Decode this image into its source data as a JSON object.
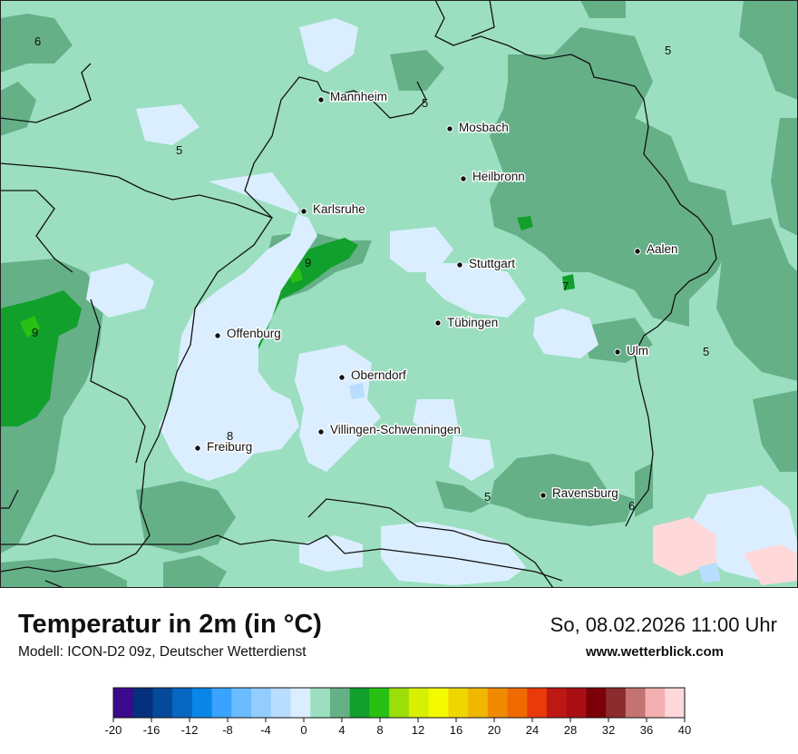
{
  "header": {
    "title": "Temperatur in 2m (in °C)",
    "model": "Modell: ICON-D2 09z, Deutscher Wetterdienst",
    "datetime": "So, 08.02.2026 11:00 Uhr",
    "site": "www.wetterblick.com"
  },
  "cities": [
    {
      "name": "Mannheim"
    },
    {
      "name": "Mosbach"
    },
    {
      "name": "Heilbronn"
    },
    {
      "name": "Karlsruhe"
    },
    {
      "name": "Aalen"
    },
    {
      "name": "Stuttgart"
    },
    {
      "name": "Tübingen"
    },
    {
      "name": "Offenburg"
    },
    {
      "name": "Ulm"
    },
    {
      "name": "Oberndorf"
    },
    {
      "name": "Villingen-Schwenningen"
    },
    {
      "name": "Freiburg"
    },
    {
      "name": "Ravensburg"
    }
  ],
  "isolines": [
    "6",
    "5",
    "5",
    "5",
    "9",
    "9",
    "7",
    "5",
    "8",
    "5",
    "6"
  ],
  "legend": {
    "ticks": [
      "-20",
      "-16",
      "-12",
      "-8",
      "-4",
      "0",
      "4",
      "8",
      "12",
      "16",
      "20",
      "24",
      "28",
      "32",
      "36",
      "40"
    ],
    "colors": [
      "#3b0a8c",
      "#05307e",
      "#064a9a",
      "#0767c2",
      "#0a86e8",
      "#3aa2ff",
      "#6bbcff",
      "#93cdff",
      "#b9ddff",
      "#dbeeff",
      "#9bdfc0",
      "#66b088",
      "#12a02c",
      "#28c013",
      "#9cde07",
      "#d7ef00",
      "#f4fa00",
      "#f0d600",
      "#f0b600",
      "#f08a00",
      "#ef6b00",
      "#e83a0a",
      "#be1815",
      "#a80f15",
      "#7c0007",
      "#8b2b2e",
      "#c47373",
      "#f4b0b0",
      "#ffd8da"
    ]
  }
}
